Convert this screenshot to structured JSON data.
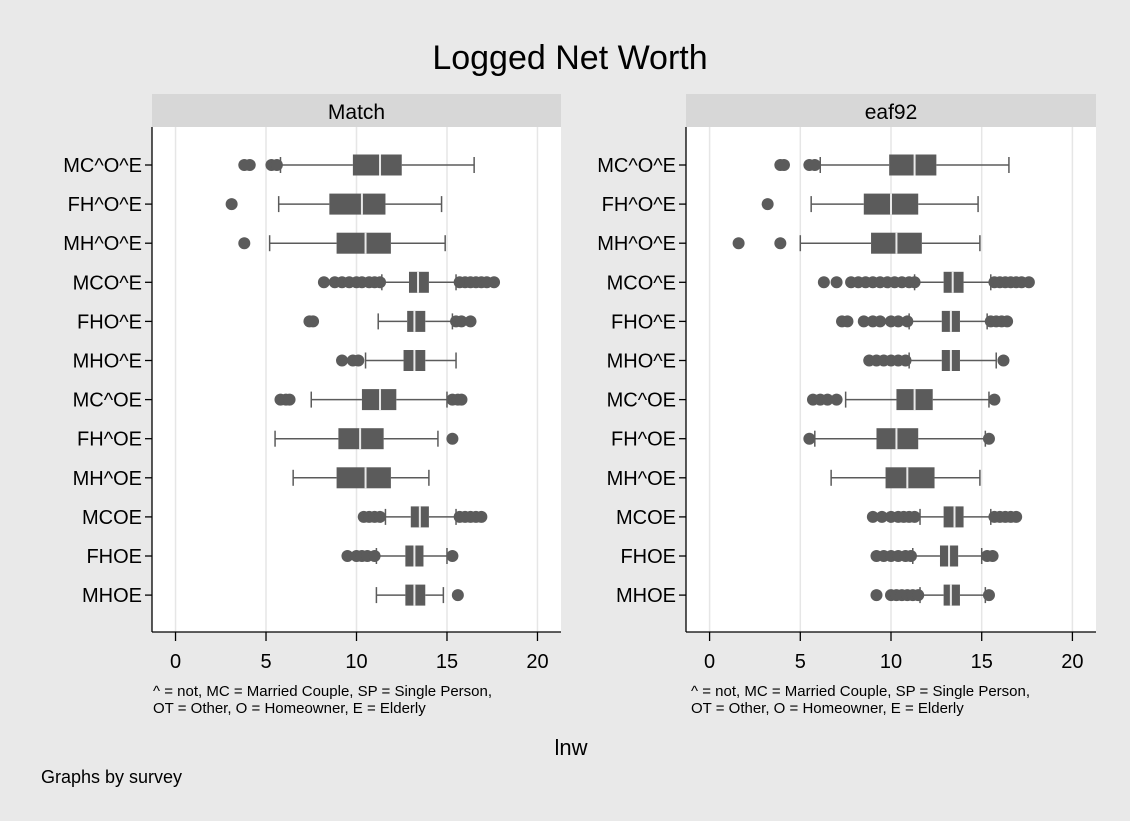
{
  "chart_data": {
    "type": "box",
    "title": "Logged Net Worth",
    "xlabel": "lnw",
    "note": "Graphs by survey",
    "footnote": [
      "^ = not, MC = Married Couple, SP = Single Person,",
      "OT = Other, O = Homeowner, E = Elderly"
    ],
    "xlim": [
      -1.3,
      21.3
    ],
    "xticks": [
      0,
      5,
      10,
      15,
      20
    ],
    "grid": true,
    "categories": [
      "MC^O^E",
      "FH^O^E",
      "MH^O^E",
      "MCO^E",
      "FHO^E",
      "MHO^E",
      "MC^OE",
      "FH^OE",
      "MH^OE",
      "MCOE",
      "FHOE",
      "MHOE"
    ],
    "panels": [
      {
        "name": "Match",
        "boxes": [
          {
            "wlo": 5.8,
            "q1": 9.8,
            "med": 11.3,
            "q3": 12.5,
            "whi": 16.5,
            "outliers": [
              3.8,
              4.1,
              5.3,
              5.6
            ]
          },
          {
            "wlo": 5.7,
            "q1": 8.5,
            "med": 10.3,
            "q3": 11.6,
            "whi": 14.7,
            "outliers": [
              3.1
            ]
          },
          {
            "wlo": 5.2,
            "q1": 8.9,
            "med": 10.5,
            "q3": 11.9,
            "whi": 14.9,
            "outliers": [
              3.8
            ]
          },
          {
            "wlo": 11.4,
            "q1": 12.9,
            "med": 13.4,
            "q3": 14.0,
            "whi": 15.5,
            "outliers": [
              8.2,
              8.8,
              9.2,
              9.6,
              10.0,
              10.3,
              10.7,
              11.0,
              11.3,
              15.7,
              16.0,
              16.3,
              16.6,
              16.9,
              17.2,
              17.6
            ]
          },
          {
            "wlo": 11.2,
            "q1": 12.8,
            "med": 13.2,
            "q3": 13.8,
            "whi": 15.3,
            "outliers": [
              7.4,
              7.6,
              15.5,
              15.8,
              16.3
            ]
          },
          {
            "wlo": 10.5,
            "q1": 12.6,
            "med": 13.2,
            "q3": 13.8,
            "whi": 15.5,
            "outliers": [
              9.2,
              9.8,
              10.1
            ]
          },
          {
            "wlo": 7.5,
            "q1": 10.3,
            "med": 11.3,
            "q3": 12.2,
            "whi": 15.0,
            "outliers": [
              5.8,
              6.1,
              6.3,
              15.3,
              15.6,
              15.8
            ]
          },
          {
            "wlo": 5.5,
            "q1": 9.0,
            "med": 10.2,
            "q3": 11.5,
            "whi": 14.5,
            "outliers": [
              15.3
            ]
          },
          {
            "wlo": 6.5,
            "q1": 8.9,
            "med": 10.5,
            "q3": 11.9,
            "whi": 14.0,
            "outliers": []
          },
          {
            "wlo": 11.6,
            "q1": 13.0,
            "med": 13.5,
            "q3": 14.0,
            "whi": 15.5,
            "outliers": [
              10.4,
              10.7,
              11.0,
              11.3,
              15.7,
              16.0,
              16.3,
              16.6,
              16.9
            ]
          },
          {
            "wlo": 11.1,
            "q1": 12.7,
            "med": 13.2,
            "q3": 13.7,
            "whi": 15.0,
            "outliers": [
              9.5,
              10.0,
              10.3,
              10.6,
              11.0,
              15.3
            ]
          },
          {
            "wlo": 11.1,
            "q1": 12.7,
            "med": 13.2,
            "q3": 13.8,
            "whi": 14.8,
            "outliers": [
              15.6
            ]
          }
        ]
      },
      {
        "name": "eaf92",
        "boxes": [
          {
            "wlo": 6.1,
            "q1": 9.9,
            "med": 11.3,
            "q3": 12.5,
            "whi": 16.5,
            "outliers": [
              3.9,
              4.1,
              5.5,
              5.8
            ]
          },
          {
            "wlo": 5.6,
            "q1": 8.5,
            "med": 10.0,
            "q3": 11.5,
            "whi": 14.8,
            "outliers": [
              3.2
            ]
          },
          {
            "wlo": 5.0,
            "q1": 8.9,
            "med": 10.3,
            "q3": 11.7,
            "whi": 14.9,
            "outliers": [
              1.6,
              3.9
            ]
          },
          {
            "wlo": 11.3,
            "q1": 12.9,
            "med": 13.4,
            "q3": 14.0,
            "whi": 15.5,
            "outliers": [
              6.3,
              7.0,
              7.8,
              8.2,
              8.6,
              9.0,
              9.4,
              9.8,
              10.2,
              10.6,
              11.0,
              11.3,
              15.7,
              16.0,
              16.3,
              16.6,
              16.9,
              17.2,
              17.6
            ]
          },
          {
            "wlo": 11.0,
            "q1": 12.8,
            "med": 13.3,
            "q3": 13.8,
            "whi": 15.3,
            "outliers": [
              7.3,
              7.6,
              8.5,
              9.0,
              9.4,
              10.0,
              10.4,
              10.9,
              15.5,
              15.8,
              16.1,
              16.4
            ]
          },
          {
            "wlo": 11.0,
            "q1": 12.8,
            "med": 13.3,
            "q3": 13.8,
            "whi": 15.8,
            "outliers": [
              8.8,
              9.2,
              9.6,
              10.0,
              10.4,
              10.8,
              16.2
            ]
          },
          {
            "wlo": 7.5,
            "q1": 10.3,
            "med": 11.3,
            "q3": 12.3,
            "whi": 15.4,
            "outliers": [
              5.7,
              6.1,
              6.5,
              7.0,
              15.7
            ]
          },
          {
            "wlo": 5.8,
            "q1": 9.2,
            "med": 10.3,
            "q3": 11.5,
            "whi": 15.2,
            "outliers": [
              5.5,
              15.4
            ]
          },
          {
            "wlo": 6.7,
            "q1": 9.7,
            "med": 10.9,
            "q3": 12.4,
            "whi": 14.9,
            "outliers": []
          },
          {
            "wlo": 11.6,
            "q1": 12.9,
            "med": 13.5,
            "q3": 14.0,
            "whi": 15.5,
            "outliers": [
              9.0,
              9.5,
              10.0,
              10.4,
              10.7,
              11.0,
              11.3,
              15.7,
              16.0,
              16.3,
              16.6,
              16.9
            ]
          },
          {
            "wlo": 11.2,
            "q1": 12.7,
            "med": 13.2,
            "q3": 13.7,
            "whi": 15.0,
            "outliers": [
              9.2,
              9.6,
              10.0,
              10.4,
              10.8,
              11.1,
              15.3,
              15.6
            ]
          },
          {
            "wlo": 11.6,
            "q1": 12.9,
            "med": 13.3,
            "q3": 13.8,
            "whi": 15.2,
            "outliers": [
              9.2,
              10.0,
              10.3,
              10.6,
              10.9,
              11.2,
              11.5,
              15.4
            ]
          }
        ]
      }
    ],
    "colors": {
      "background": "#e9e9e9",
      "plot_bg": "#ffffff",
      "header_bg": "#d7d7d7",
      "grid": "#e6e6e6",
      "box": "#5b5b5b",
      "median": "#e9e9e9"
    }
  }
}
